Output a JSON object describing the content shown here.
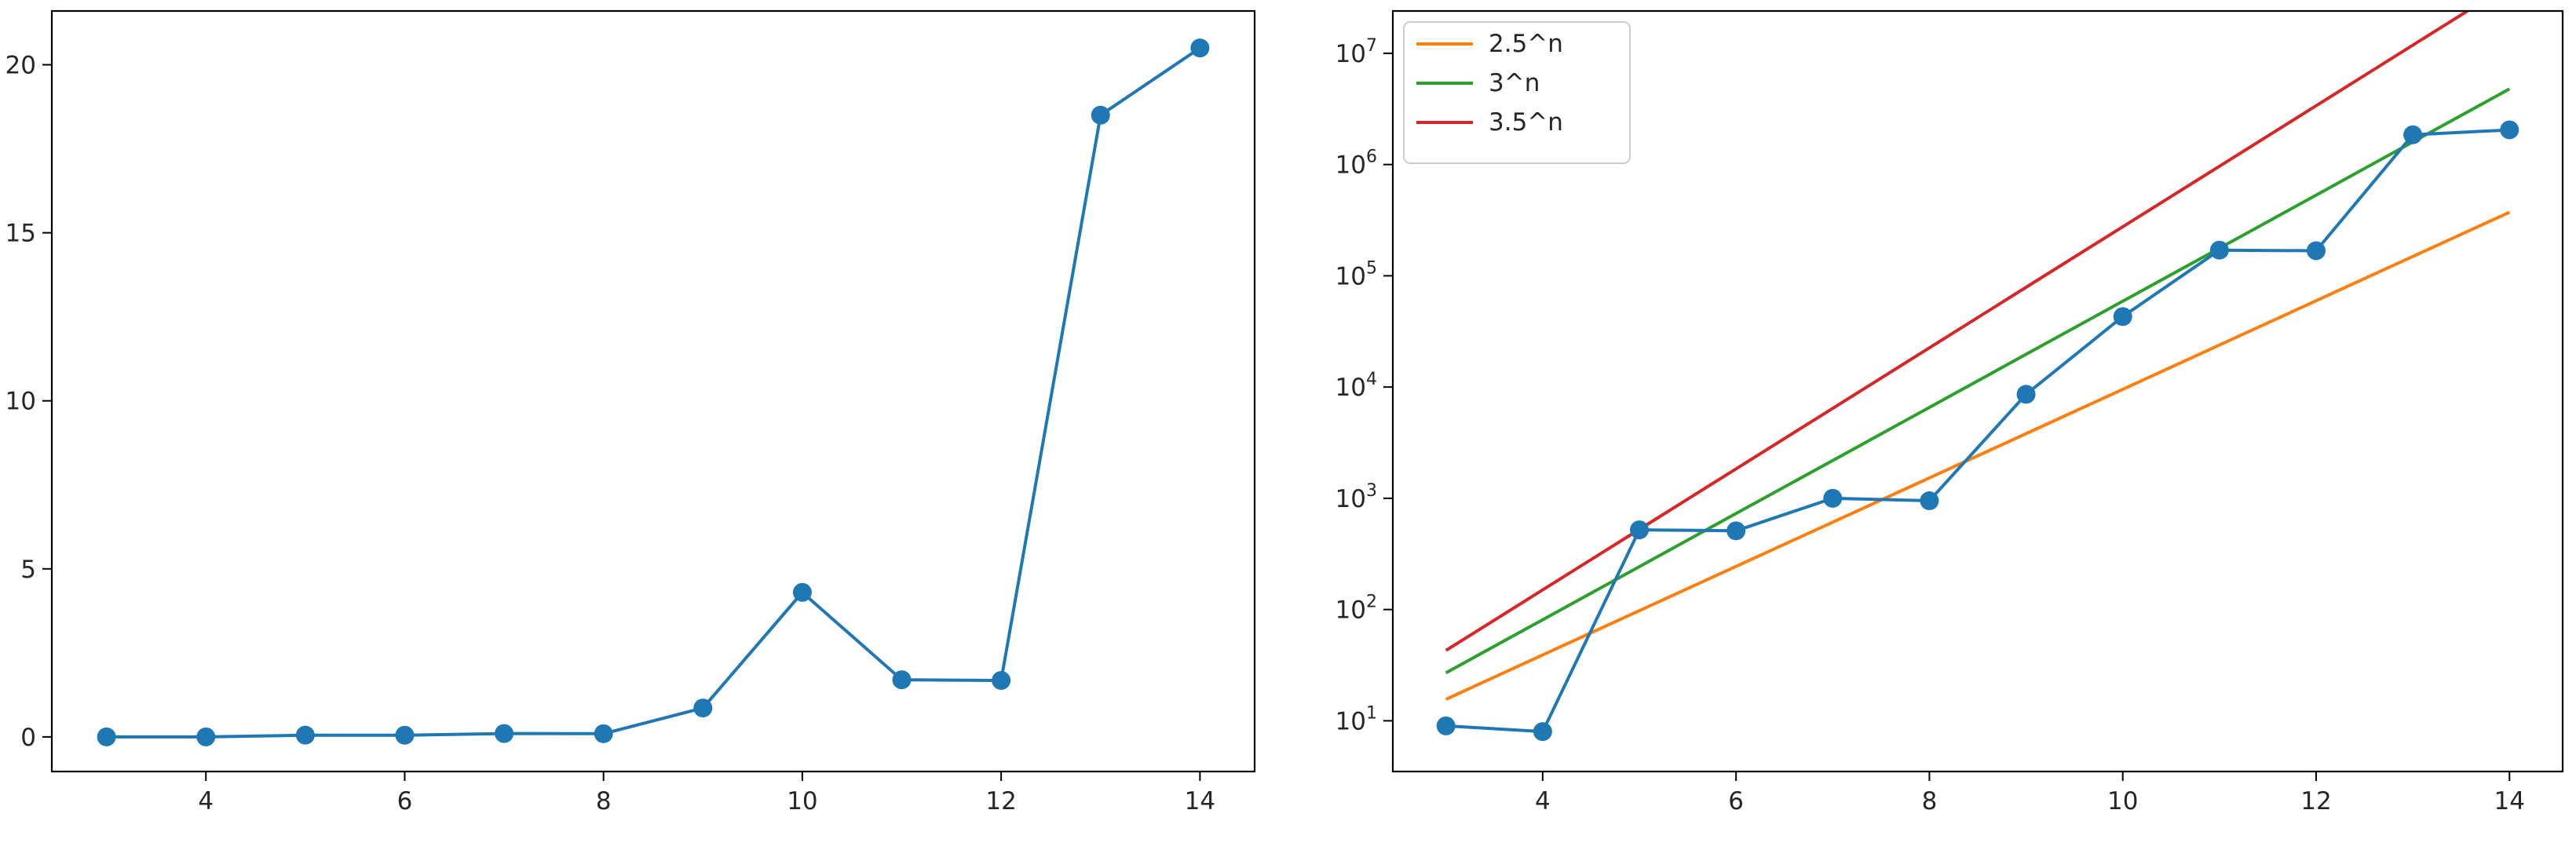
{
  "chart_data": [
    {
      "type": "line",
      "title": "",
      "xlabel": "",
      "ylabel": "",
      "x": [
        3,
        4,
        5,
        6,
        7,
        8,
        9,
        10,
        11,
        12,
        13,
        14
      ],
      "xlim": [
        2.45,
        14.55
      ],
      "ylim": [
        -1.03,
        21.6
      ],
      "xticks": [
        4,
        6,
        8,
        10,
        12,
        14
      ],
      "yticks": [
        0,
        5,
        10,
        15,
        20
      ],
      "grid": false,
      "series": [
        {
          "values": [
            0.0009,
            0.0008,
            0.052,
            0.05,
            0.1,
            0.095,
            0.86,
            4.3,
            1.7,
            1.68,
            18.5,
            20.5
          ],
          "color": "#1f77b4",
          "marker": "circle"
        }
      ]
    },
    {
      "type": "line",
      "title": "",
      "xlabel": "",
      "ylabel": "",
      "yscale": "log",
      "x": [
        3,
        4,
        5,
        6,
        7,
        8,
        9,
        10,
        11,
        12,
        13,
        14
      ],
      "xlim": [
        2.45,
        14.55
      ],
      "ylim": [
        3.5,
        24000000
      ],
      "xticks": [
        4,
        6,
        8,
        10,
        12,
        14
      ],
      "yticks": [
        {
          "base": "10",
          "exp": "1",
          "value": 10
        },
        {
          "base": "10",
          "exp": "2",
          "value": 100
        },
        {
          "base": "10",
          "exp": "3",
          "value": 1000
        },
        {
          "base": "10",
          "exp": "4",
          "value": 10000
        },
        {
          "base": "10",
          "exp": "5",
          "value": 100000
        },
        {
          "base": "10",
          "exp": "6",
          "value": 1000000
        },
        {
          "base": "10",
          "exp": "7",
          "value": 10000000
        }
      ],
      "grid": false,
      "legend": {
        "position": "top-left",
        "entries": [
          "2.5^n",
          "3^n",
          "3.5^n"
        ]
      },
      "series": [
        {
          "values": [
            9,
            8,
            520,
            510,
            1000,
            950,
            8600,
            43000,
            170000,
            168000,
            1850000,
            2050000
          ],
          "color": "#1f77b4",
          "marker": "circle"
        },
        {
          "name": "2.5^n",
          "base": 2.5,
          "values": [
            15.6,
            39.1,
            97.7,
            244.1,
            610.4,
            1525.9,
            3814.7,
            9536.7,
            23841.9,
            59604.6,
            149011.6,
            372529
          ],
          "color": "#ff7f0e",
          "marker": "none"
        },
        {
          "name": "3^n",
          "base": 3,
          "values": [
            27,
            81,
            243,
            729,
            2187,
            6561,
            19683,
            59049,
            177147,
            531441,
            1594323,
            4782969
          ],
          "color": "#2ca02c",
          "marker": "none"
        },
        {
          "name": "3.5^n",
          "base": 3.5,
          "values": [
            42.9,
            150.1,
            525.2,
            1838.3,
            6433.9,
            22518.8,
            78815.6,
            275854.7,
            965491.5,
            3379220.5,
            11827271.8,
            41395451.2
          ],
          "color": "#d62728",
          "marker": "none"
        }
      ]
    }
  ]
}
